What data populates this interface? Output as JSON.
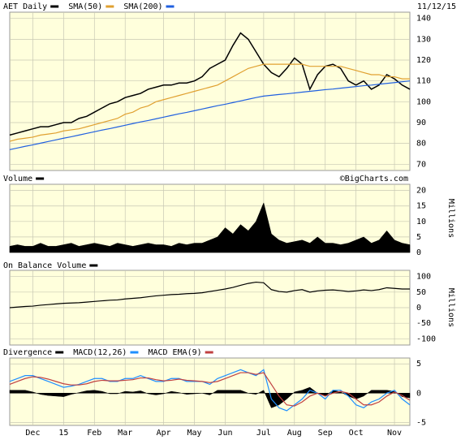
{
  "chart_data": [
    {
      "type": "line",
      "date": "11/12/15",
      "ylim": [
        67,
        143
      ],
      "yticks": [
        70,
        80,
        90,
        100,
        110,
        120,
        130,
        140
      ],
      "grid": true,
      "series": [
        {
          "name": "AET Daily",
          "color": "#000000",
          "values": [
            84,
            85,
            86,
            87,
            88,
            88,
            89,
            90,
            90,
            92,
            93,
            95,
            97,
            99,
            100,
            102,
            103,
            104,
            106,
            107,
            108,
            108,
            109,
            109,
            110,
            112,
            116,
            118,
            120,
            127,
            133,
            130,
            124,
            118,
            114,
            112,
            116,
            121,
            118,
            106,
            113,
            117,
            118,
            116,
            110,
            108,
            110,
            106,
            108,
            113,
            111,
            108,
            106
          ]
        },
        {
          "name": "SMA(50)",
          "color": "#e0a030",
          "values": [
            81,
            82,
            82.5,
            83,
            84,
            84.5,
            85,
            86,
            86.5,
            87,
            88,
            89,
            90,
            91,
            92,
            94,
            95,
            97,
            98,
            100,
            101,
            102,
            103,
            104,
            105,
            106,
            107,
            108,
            110,
            112,
            114,
            116,
            117,
            118,
            118,
            118,
            118,
            118,
            118,
            117,
            117,
            117,
            117,
            117,
            116,
            115,
            114,
            113,
            113,
            112,
            112,
            111,
            111
          ]
        },
        {
          "name": "SMA(200)",
          "color": "#2060e0",
          "values": [
            77,
            77.8,
            78.6,
            79.3,
            80.1,
            80.9,
            81.7,
            82.5,
            83.2,
            84,
            84.8,
            85.6,
            86.4,
            87.1,
            87.9,
            88.7,
            89.5,
            90.3,
            91,
            91.8,
            92.6,
            93.4,
            94.2,
            94.9,
            95.7,
            96.5,
            97.3,
            98.1,
            98.8,
            99.6,
            100.4,
            101.2,
            102,
            102.7,
            103.1,
            103.5,
            103.8,
            104.2,
            104.6,
            105,
            105.4,
            105.8,
            106.1,
            106.5,
            106.9,
            107.3,
            107.7,
            108,
            108.4,
            108.8,
            109.2,
            109.6,
            110
          ]
        }
      ]
    },
    {
      "type": "area",
      "credit": "©BigCharts.com",
      "axis_label": "Millions",
      "ylim": [
        0,
        22
      ],
      "yticks": [
        0,
        5,
        10,
        15,
        20
      ],
      "grid": true,
      "series": [
        {
          "name": "Volume",
          "color": "#000000",
          "values": [
            2,
            2.5,
            2,
            2,
            3,
            2,
            2,
            2.5,
            3,
            2,
            2.5,
            3,
            2.5,
            2,
            3,
            2.5,
            2,
            2.5,
            3,
            2.5,
            2.5,
            2,
            3,
            2.5,
            3,
            3,
            4,
            5,
            8,
            6,
            9,
            7,
            10,
            16,
            6,
            4,
            3,
            3.5,
            4,
            3,
            5,
            3,
            3,
            2.5,
            3,
            4,
            5,
            3,
            4,
            7,
            4,
            3,
            2.5
          ]
        }
      ]
    },
    {
      "type": "line",
      "axis_label": "Millions",
      "ylim": [
        -120,
        120
      ],
      "yticks": [
        -100,
        -50,
        0,
        50,
        100
      ],
      "grid": true,
      "series": [
        {
          "name": "On Balance Volume",
          "color": "#000000",
          "values": [
            0,
            2,
            4,
            5,
            8,
            10,
            12,
            14,
            15,
            16,
            18,
            20,
            22,
            24,
            25,
            28,
            30,
            32,
            35,
            38,
            40,
            42,
            43,
            45,
            46,
            48,
            52,
            56,
            60,
            65,
            72,
            78,
            82,
            80,
            58,
            52,
            50,
            55,
            58,
            50,
            54,
            56,
            57,
            55,
            52,
            54,
            57,
            55,
            58,
            64,
            62,
            60,
            60
          ]
        }
      ]
    },
    {
      "type": "line",
      "ylim": [
        -5.5,
        6
      ],
      "yticks": [
        -5,
        0,
        5
      ],
      "grid": true,
      "categories": [
        null,
        null,
        null,
        "Dec",
        null,
        null,
        null,
        "15",
        null,
        null,
        null,
        "Feb",
        null,
        null,
        null,
        "Mar",
        null,
        null,
        null,
        null,
        "Apr",
        null,
        null,
        null,
        "May",
        null,
        null,
        null,
        "Jun",
        null,
        null,
        null,
        null,
        "Jul",
        null,
        null,
        null,
        "Aug",
        null,
        null,
        null,
        "Sep",
        null,
        null,
        null,
        "Oct",
        null,
        null,
        null,
        null,
        "Nov",
        null,
        null
      ],
      "series": [
        {
          "name": "Divergence",
          "color": "#000000",
          "type": "area",
          "values": [
            0.5,
            0.5,
            0.5,
            0.2,
            -0.2,
            -0.4,
            -0.5,
            -0.6,
            -0.2,
            0.1,
            0.4,
            0.5,
            0.3,
            -0.1,
            -0.1,
            0.3,
            0.2,
            0.4,
            -0.1,
            -0.3,
            -0.1,
            0.3,
            0.1,
            -0.2,
            -0.1,
            0,
            -0.3,
            0.5,
            0.5,
            0.5,
            0.5,
            0,
            -0.2,
            0.5,
            -2.5,
            -2,
            -1,
            0.2,
            0.5,
            1,
            0,
            -0.5,
            0.5,
            0.2,
            -0.5,
            -1,
            -0.5,
            0.5,
            0.5,
            0.5,
            0.3,
            -0.6,
            -0.8
          ]
        },
        {
          "name": "MACD(12,26)",
          "color": "#1e8fff",
          "values": [
            2,
            2.5,
            3,
            3,
            2.5,
            2,
            1.5,
            1,
            1.2,
            1.5,
            2,
            2.5,
            2.5,
            2,
            2,
            2.5,
            2.5,
            3,
            2.5,
            2,
            2,
            2.5,
            2.5,
            2,
            2,
            2,
            1.5,
            2.5,
            3,
            3.5,
            4,
            3.5,
            3,
            4,
            -1,
            -2.5,
            -3,
            -2,
            -1,
            0.5,
            0,
            -1,
            0.5,
            0.5,
            -0.5,
            -2,
            -2.5,
            -1.5,
            -1,
            0,
            0.5,
            -1,
            -2
          ]
        },
        {
          "name": "MACD EMA(9)",
          "color": "#c04040",
          "values": [
            1.5,
            2,
            2.5,
            2.8,
            2.7,
            2.4,
            2,
            1.6,
            1.4,
            1.4,
            1.6,
            2,
            2.2,
            2.1,
            2.1,
            2.2,
            2.3,
            2.6,
            2.6,
            2.3,
            2.1,
            2.2,
            2.4,
            2.2,
            2.1,
            2,
            1.8,
            2,
            2.5,
            3,
            3.5,
            3.5,
            3.2,
            3.5,
            1.5,
            -0.5,
            -2,
            -2.2,
            -1.5,
            -0.5,
            0,
            -0.5,
            0,
            0.3,
            0,
            -1,
            -2,
            -2,
            -1.5,
            -0.5,
            0.2,
            -0.4,
            -1.2
          ]
        }
      ]
    }
  ]
}
